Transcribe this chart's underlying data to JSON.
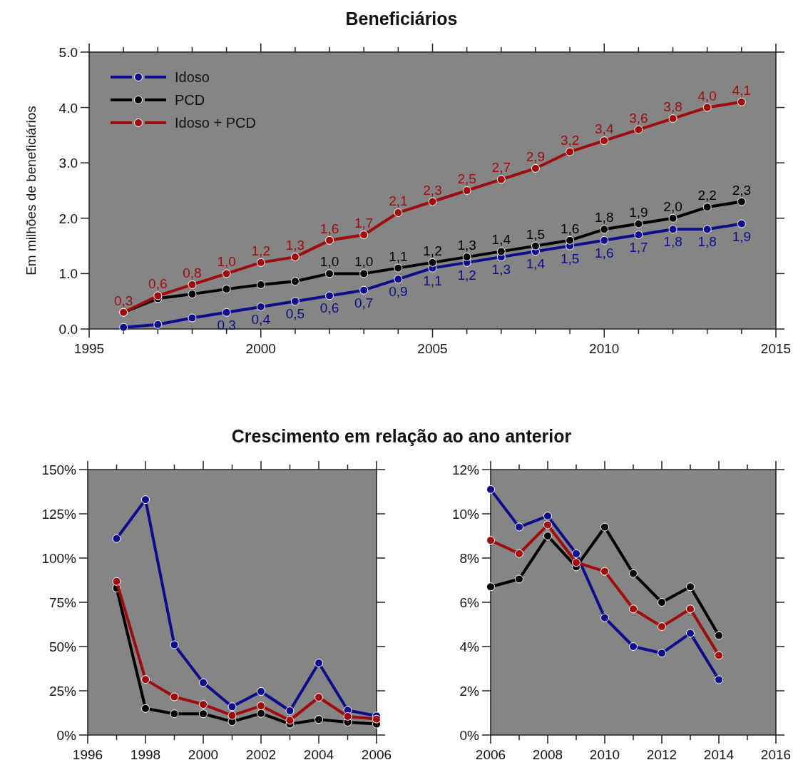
{
  "chart_data": [
    {
      "type": "line",
      "title": "Beneficiários",
      "ylabel": "Em milhões de beneficiários",
      "x": [
        1996,
        1997,
        1998,
        1999,
        2000,
        2001,
        2002,
        2003,
        2004,
        2005,
        2006,
        2007,
        2008,
        2009,
        2010,
        2011,
        2012,
        2013,
        2014
      ],
      "xlim": [
        1995,
        2015
      ],
      "xticks": [
        1995,
        {
          "value": 1996,
          "label": null
        },
        {
          "value": 1997,
          "label": null
        },
        {
          "value": 1998,
          "label": null
        },
        {
          "value": 1999,
          "label": null
        },
        2000,
        {
          "value": 2001,
          "label": null
        },
        {
          "value": 2002,
          "label": null
        },
        {
          "value": 2003,
          "label": null
        },
        {
          "value": 2004,
          "label": null
        },
        2005,
        {
          "value": 2006,
          "label": null
        },
        {
          "value": 2007,
          "label": null
        },
        {
          "value": 2008,
          "label": null
        },
        {
          "value": 2009,
          "label": null
        },
        2010,
        {
          "value": 2011,
          "label": null
        },
        {
          "value": 2012,
          "label": null
        },
        {
          "value": 2013,
          "label": null
        },
        {
          "value": 2014,
          "label": null
        },
        2015
      ],
      "ylim": [
        0,
        5
      ],
      "yticks": [
        {
          "value": 0,
          "label": "0.0"
        },
        {
          "value": 1,
          "label": "1.0"
        },
        {
          "value": 2,
          "label": "2.0"
        },
        {
          "value": 3,
          "label": "3.0"
        },
        {
          "value": 4,
          "label": "4.0"
        },
        {
          "value": 5,
          "label": "5.0"
        }
      ],
      "legend": "top left",
      "marker": "circle",
      "line_style": "solid",
      "grid": false,
      "series": [
        {
          "name": "Idoso",
          "color": "#0c0c8c",
          "values": [
            0.03,
            0.08,
            0.2,
            0.3,
            0.4,
            0.5,
            0.6,
            0.7,
            0.9,
            1.1,
            1.2,
            1.3,
            1.4,
            1.5,
            1.6,
            1.7,
            1.8,
            1.8,
            1.9
          ],
          "value_labels": [
            null,
            null,
            null,
            "0,3",
            "0,4",
            "0,5",
            "0,6",
            "0,7",
            "0,9",
            "1,1",
            "1,2",
            "1,3",
            "1,4",
            "1,5",
            "1,6",
            "1,7",
            "1,8",
            "1,8",
            "1,9"
          ]
        },
        {
          "name": "PCD",
          "color": "#000000",
          "values": [
            0.3,
            0.55,
            0.63,
            0.72,
            0.8,
            0.86,
            1.0,
            1.0,
            1.1,
            1.2,
            1.3,
            1.4,
            1.5,
            1.6,
            1.8,
            1.9,
            2.0,
            2.2,
            2.3
          ],
          "value_labels": [
            null,
            null,
            null,
            null,
            null,
            null,
            "1,0",
            "1,0",
            "1,1",
            "1,2",
            "1,3",
            "1,4",
            "1,5",
            "1,6",
            "1,8",
            "1,9",
            "2,0",
            "2,2",
            "2,3"
          ]
        },
        {
          "name": "Idoso + PCD",
          "color": "#a00c0c",
          "values": [
            0.3,
            0.6,
            0.8,
            1.0,
            1.2,
            1.3,
            1.6,
            1.7,
            2.1,
            2.3,
            2.5,
            2.7,
            2.9,
            3.2,
            3.4,
            3.6,
            3.8,
            4.0,
            4.1
          ],
          "value_labels": [
            "0,3",
            "0,6",
            "0,8",
            "1,0",
            "1,2",
            "1,3",
            "1,6",
            "1,7",
            "2,1",
            "2,3",
            "2,5",
            "2,7",
            "2,9",
            "3,2",
            "3,4",
            "3,6",
            "3,8",
            "4,0",
            "4,1"
          ]
        }
      ]
    },
    {
      "type": "line",
      "title": "Crescimento em relação ao ano anterior",
      "x": [
        1997,
        1998,
        1999,
        2000,
        2001,
        2002,
        2003,
        2004,
        2005,
        2006
      ],
      "xlim": [
        1996,
        2006
      ],
      "xticks": [
        1996,
        {
          "value": 1997,
          "label": null
        },
        1998,
        {
          "value": 1999,
          "label": null
        },
        2000,
        {
          "value": 2001,
          "label": null
        },
        2002,
        {
          "value": 2003,
          "label": null
        },
        2004,
        {
          "value": 2005,
          "label": null
        },
        2006
      ],
      "ylim": [
        0,
        150
      ],
      "yticks": [
        {
          "value": 0,
          "label": "0%"
        },
        {
          "value": 25,
          "label": "25%"
        },
        {
          "value": 50,
          "label": "50%"
        },
        {
          "value": 75,
          "label": "75%"
        },
        {
          "value": 100,
          "label": "100%"
        },
        {
          "value": 125,
          "label": "125%"
        },
        {
          "value": 150,
          "label": "150%"
        }
      ],
      "marker": "circle",
      "line_style": "solid",
      "grid": false,
      "series": [
        {
          "color": "#0c0c8c",
          "values": [
            111,
            133,
            51,
            29.6,
            16,
            24.6,
            13.7,
            40.7,
            14,
            10.8
          ]
        },
        {
          "color": "#000000",
          "values": [
            83,
            15,
            12,
            12,
            7.6,
            12.2,
            6.2,
            8.8,
            7.3,
            6.2
          ]
        },
        {
          "color": "#a00c0c",
          "values": [
            86.8,
            31.4,
            21.6,
            17.3,
            11,
            16.5,
            8.3,
            21.3,
            10.5,
            9
          ]
        }
      ]
    },
    {
      "type": "line",
      "x": [
        2006,
        2007,
        2008,
        2009,
        2010,
        2011,
        2012,
        2013,
        2014
      ],
      "xlim": [
        2006,
        2016
      ],
      "xticks": [
        2006,
        {
          "value": 2007,
          "label": null
        },
        2008,
        {
          "value": 2009,
          "label": null
        },
        2010,
        {
          "value": 2011,
          "label": null
        },
        2012,
        {
          "value": 2013,
          "label": null
        },
        2014,
        {
          "value": 2015,
          "label": null
        },
        2016
      ],
      "ylim": [
        0,
        12
      ],
      "yticks": [
        {
          "value": 0,
          "label": "0%"
        },
        {
          "value": 2,
          "label": "2%"
        },
        {
          "value": 4,
          "label": "4%"
        },
        {
          "value": 6,
          "label": "6%"
        },
        {
          "value": 8,
          "label": "8%"
        },
        {
          "value": 10,
          "label": "10%"
        },
        {
          "value": 12,
          "label": "12%"
        }
      ],
      "marker": "circle",
      "line_style": "solid",
      "grid": false,
      "series": [
        {
          "color": "#0c0c8c",
          "values": [
            11.1,
            9.4,
            9.9,
            8.2,
            5.3,
            4.0,
            3.7,
            4.6,
            2.5
          ]
        },
        {
          "color": "#000000",
          "values": [
            6.7,
            7.05,
            9.0,
            7.6,
            9.4,
            7.3,
            6.0,
            6.7,
            4.5
          ]
        },
        {
          "color": "#a00c0c",
          "values": [
            8.8,
            8.2,
            9.5,
            7.8,
            7.4,
            5.7,
            4.9,
            5.7,
            3.6
          ]
        }
      ]
    }
  ]
}
